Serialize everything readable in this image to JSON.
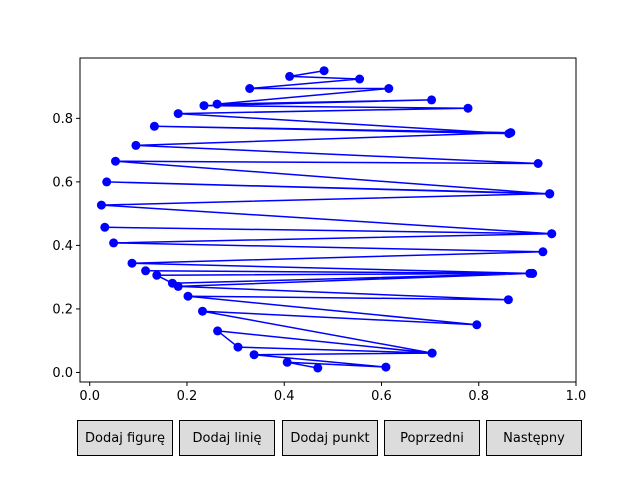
{
  "chart_data": {
    "type": "line",
    "title": "",
    "xlabel": "",
    "ylabel": "",
    "xlim": [
      -0.02,
      1.0
    ],
    "ylim": [
      -0.03,
      0.99
    ],
    "xticks": [
      "0.0",
      "0.2",
      "0.4",
      "0.6",
      "0.8",
      "1.0"
    ],
    "yticks": [
      "0.0",
      "0.2",
      "0.4",
      "0.6",
      "0.8"
    ],
    "grid": false,
    "series": [
      {
        "color": "#0000ff",
        "marker": "circle",
        "x": [
          0.482,
          0.411,
          0.555,
          0.329,
          0.615,
          0.262,
          0.703,
          0.235,
          0.778,
          0.182,
          0.862,
          0.133,
          0.866,
          0.095,
          0.922,
          0.053,
          0.946,
          0.035,
          0.946,
          0.024,
          0.95,
          0.031,
          0.95,
          0.049,
          0.932,
          0.087,
          0.905,
          0.115,
          0.911,
          0.138,
          0.17,
          0.91,
          0.182,
          0.861,
          0.202,
          0.796,
          0.232,
          0.704,
          0.263,
          0.305,
          0.704,
          0.338,
          0.609,
          0.406,
          0.469
        ],
        "y": [
          0.95,
          0.932,
          0.924,
          0.894,
          0.894,
          0.845,
          0.858,
          0.84,
          0.832,
          0.815,
          0.752,
          0.775,
          0.755,
          0.715,
          0.658,
          0.665,
          0.562,
          0.6,
          0.563,
          0.527,
          0.437,
          0.457,
          0.437,
          0.408,
          0.38,
          0.344,
          0.312,
          0.32,
          0.312,
          0.306,
          0.281,
          0.312,
          0.271,
          0.229,
          0.24,
          0.15,
          0.193,
          0.061,
          0.131,
          0.08,
          0.061,
          0.056,
          0.017,
          0.032,
          0.014
        ]
      }
    ]
  },
  "buttons": {
    "add_figure": "Dodaj figurę",
    "add_line": "Dodaj linię",
    "add_point": "Dodaj punkt",
    "previous": "Poprzedni",
    "next": "Następny"
  }
}
